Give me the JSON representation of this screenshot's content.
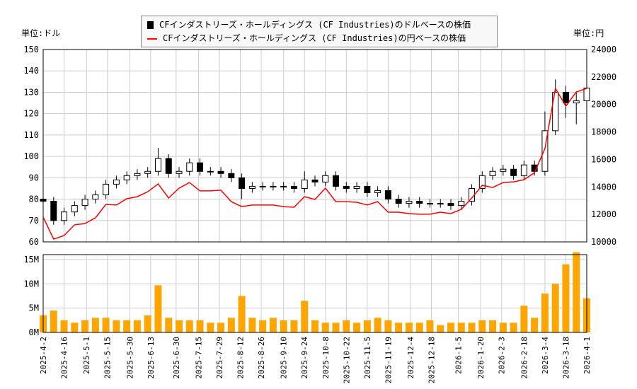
{
  "chart_data": [
    {
      "type": "candlestick+line",
      "legend": [
        "CFインダストリーズ・ホールディングス (CF Industries)のドルベースの株価",
        "CFインダストリーズ・ホールディングス (CF Industries)の円ベースの株価"
      ],
      "legend_placement": "top-center",
      "left_unit": "単位:ドル",
      "right_unit": "単位:円",
      "ylim_left": [
        60,
        150
      ],
      "ylim_right": [
        10000,
        24000
      ],
      "yticks_left": [
        60,
        70,
        80,
        90,
        100,
        110,
        120,
        130,
        140,
        150
      ],
      "yticks_right": [
        10000,
        12000,
        14000,
        16000,
        18000,
        20000,
        22000,
        24000
      ],
      "grid": true,
      "colors": {
        "candle": "#000000",
        "yen_line": "#ff0000"
      },
      "dates": [
        "2025-04-02",
        "2025-04-09",
        "2025-04-16",
        "2025-04-23",
        "2025-04-30",
        "2025-05-07",
        "2025-05-14",
        "2025-05-21",
        "2025-05-28",
        "2025-06-04",
        "2025-06-11",
        "2025-06-18",
        "2025-06-25",
        "2025-07-02",
        "2025-07-09",
        "2025-07-16",
        "2025-07-23",
        "2025-07-30",
        "2025-08-06",
        "2025-08-13",
        "2025-08-20",
        "2025-08-27",
        "2025-09-03",
        "2025-09-10",
        "2025-09-17",
        "2025-09-24",
        "2025-10-01",
        "2025-10-08",
        "2025-10-15",
        "2025-10-22",
        "2025-10-29",
        "2025-11-05",
        "2025-11-12",
        "2025-11-19",
        "2025-11-26",
        "2025-12-03",
        "2025-12-10",
        "2025-12-17",
        "2025-12-24",
        "2025-12-31",
        "2026-01-07",
        "2026-01-14",
        "2026-01-21",
        "2026-01-28",
        "2026-02-04",
        "2026-02-11",
        "2026-02-18",
        "2026-02-25",
        "2026-03-04",
        "2026-03-11",
        "2026-03-18",
        "2026-03-25",
        "2026-04-01"
      ],
      "open": [
        80,
        79,
        70,
        74,
        77,
        80,
        82,
        87,
        89,
        91,
        92,
        93,
        99,
        92,
        93,
        97,
        93,
        93,
        92,
        90,
        85,
        86,
        86,
        86,
        86,
        85,
        89,
        88,
        91,
        86,
        85,
        86,
        83,
        84,
        80,
        78,
        79,
        78,
        78,
        78,
        77,
        79,
        85,
        91,
        93,
        94,
        91,
        96,
        93,
        112,
        130,
        125,
        126
      ],
      "high": [
        82,
        81,
        76,
        79,
        82,
        84,
        89,
        91,
        93,
        94,
        95,
        104,
        101,
        95,
        99,
        99,
        95,
        95,
        94,
        92,
        88,
        88,
        88,
        88,
        88,
        93,
        91,
        93,
        93,
        88,
        88,
        88,
        86,
        86,
        82,
        81,
        81,
        80,
        80,
        80,
        81,
        87,
        93,
        95,
        96,
        96,
        98,
        98,
        121,
        136,
        133,
        130,
        142
      ],
      "low": [
        77,
        68,
        68,
        72,
        75,
        78,
        80,
        85,
        87,
        89,
        90,
        91,
        90,
        90,
        91,
        91,
        91,
        90,
        88,
        80,
        83,
        84,
        84,
        84,
        83,
        83,
        86,
        86,
        84,
        83,
        83,
        81,
        81,
        78,
        76,
        76,
        76,
        76,
        76,
        75,
        75,
        77,
        83,
        89,
        91,
        89,
        89,
        91,
        91,
        110,
        118,
        115,
        124
      ],
      "close": [
        79,
        70,
        74,
        77,
        80,
        82,
        87,
        89,
        91,
        92,
        93,
        99,
        92,
        93,
        97,
        93,
        93,
        92,
        90,
        85,
        86,
        86,
        86,
        86,
        85,
        89,
        88,
        91,
        86,
        85,
        86,
        83,
        84,
        80,
        78,
        79,
        78,
        78,
        78,
        77,
        79,
        85,
        91,
        93,
        94,
        91,
        96,
        93,
        112,
        130,
        125,
        126,
        132
      ],
      "yen": [
        11800,
        10200,
        10460,
        11240,
        11340,
        11750,
        12730,
        12680,
        13140,
        13290,
        13650,
        14220,
        13190,
        13910,
        14320,
        13710,
        13710,
        13760,
        12930,
        12570,
        12680,
        12680,
        12680,
        12570,
        12520,
        13290,
        13090,
        13910,
        12930,
        12930,
        12880,
        12680,
        12930,
        12160,
        12160,
        12060,
        12010,
        12010,
        12160,
        12060,
        12370,
        13190,
        14120,
        13960,
        14320,
        14370,
        14530,
        15040,
        16790,
        21170,
        19880,
        20910,
        21170
      ]
    },
    {
      "type": "bar",
      "ylim": [
        0,
        16
      ],
      "yticks": [
        "0M",
        "5M",
        "10M",
        "15M"
      ],
      "color": "#ffa500",
      "values_millions": [
        3.5,
        4.5,
        2.5,
        2,
        2.5,
        3,
        3,
        2.5,
        2.5,
        2.5,
        3.5,
        9.7,
        3,
        2.5,
        2.5,
        2.5,
        2,
        2,
        3,
        7.5,
        3,
        2.5,
        3,
        2.5,
        2.5,
        6.5,
        2.5,
        2,
        2,
        2.5,
        2,
        2.5,
        3,
        2.5,
        2,
        2,
        2,
        2.5,
        1.5,
        2,
        2,
        2,
        2.5,
        2.5,
        2,
        2,
        5.5,
        3,
        8,
        10,
        14,
        16.5,
        7
      ],
      "xticks": [
        "2025-4-2",
        "2025-4-16",
        "2025-5-1",
        "2025-5-15",
        "2025-5-30",
        "2025-6-13",
        "2025-6-30",
        "2025-7-15",
        "2025-7-29",
        "2025-8-12",
        "2025-8-26",
        "2025-9-10",
        "2025-9-24",
        "2025-10-8",
        "2025-10-22",
        "2025-11-5",
        "2025-11-19",
        "2025-12-4",
        "2025-12-18",
        "2026-1-5",
        "2026-1-20",
        "2026-2-3",
        "2026-2-18",
        "2026-3-4",
        "2026-3-18",
        "2026-4-1"
      ]
    }
  ]
}
